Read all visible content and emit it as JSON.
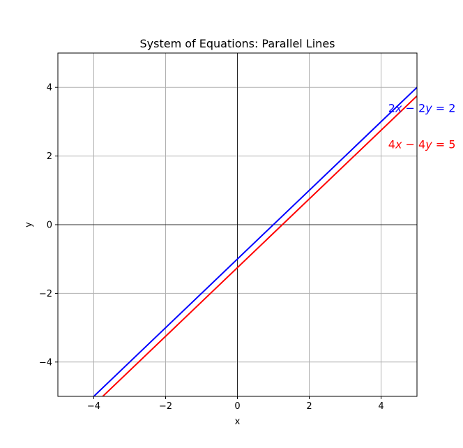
{
  "chart_data": {
    "type": "line",
    "title": "System of Equations: Parallel Lines",
    "xlabel": "x",
    "ylabel": "y",
    "xlim": [
      -5,
      5
    ],
    "ylim": [
      -5,
      5
    ],
    "xticks": [
      -4,
      -2,
      0,
      2,
      4
    ],
    "yticks": [
      -4,
      -2,
      0,
      2,
      4
    ],
    "xtick_labels": [
      "−4",
      "−2",
      "0",
      "2",
      "4"
    ],
    "ytick_labels": [
      "−4",
      "−2",
      "0",
      "2",
      "4"
    ],
    "grid": true,
    "axis_lines_through_origin": true,
    "series": [
      {
        "name": "2x − 2y = 2",
        "label_parts": [
          "2",
          "x",
          " − 2",
          "y",
          " = 2"
        ],
        "color": "#0000ff",
        "x": [
          -5,
          5
        ],
        "y": [
          -6,
          4
        ],
        "label_at": [
          4.2,
          3.4
        ]
      },
      {
        "name": "4x − 4y = 5",
        "label_parts": [
          "4",
          "x",
          " − 4",
          "y",
          " = 5"
        ],
        "color": "#ff0000",
        "x": [
          -5,
          5
        ],
        "y": [
          -6.25,
          3.75
        ],
        "label_at": [
          4.2,
          2.35
        ]
      }
    ]
  }
}
